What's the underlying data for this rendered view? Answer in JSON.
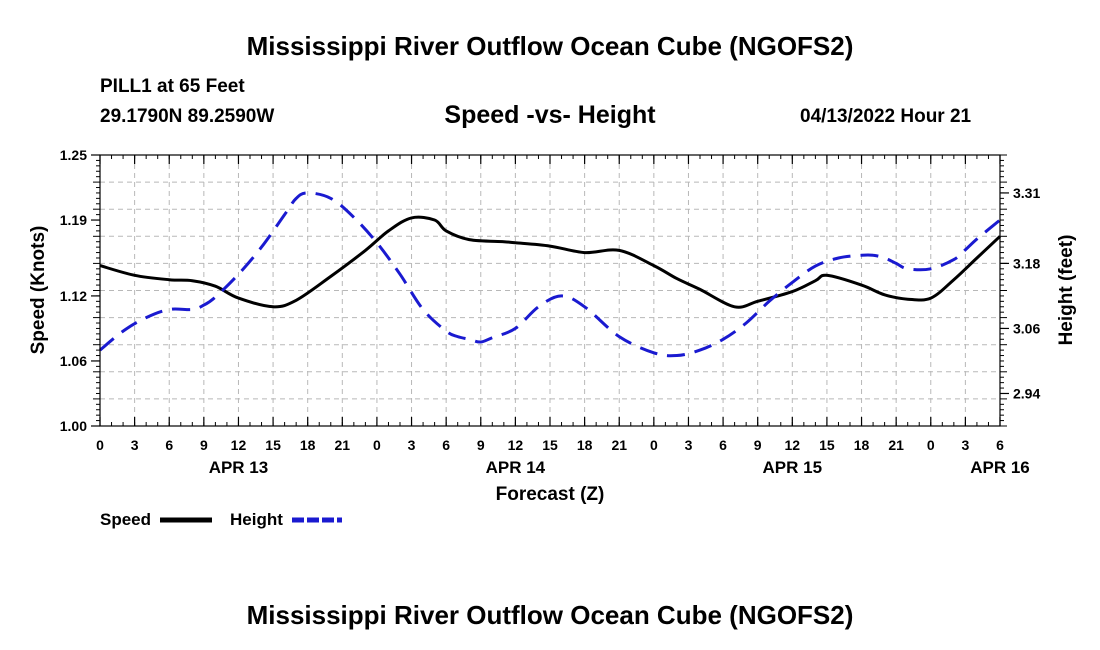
{
  "header": {
    "title": "Mississippi River Outflow Ocean Cube (NGOFS2)",
    "station": "PILL1 at 65 Feet",
    "coords": "29.1790N  89.2590W",
    "datetime": "04/13/2022 Hour 21",
    "bottom_title": "Mississippi River Outflow Ocean Cube (NGOFS2)"
  },
  "chart_data": {
    "type": "line",
    "title": "Speed -vs- Height",
    "xlabel": "Forecast (Z)",
    "ylabel": "Speed (Knots)",
    "y2label": "Height (feet)",
    "ylim": [
      1.0,
      1.25
    ],
    "y2lim": [
      2.88,
      3.38
    ],
    "yticks": [
      "1.00",
      "1.06",
      "1.12",
      "1.19",
      "1.25"
    ],
    "ytick_values": [
      1.0,
      1.06,
      1.12,
      1.19,
      1.25
    ],
    "y2ticks": [
      "2.94",
      "3.06",
      "3.18",
      "3.31"
    ],
    "y2tick_values": [
      2.94,
      3.06,
      3.18,
      3.31
    ],
    "xlim": [
      0,
      78
    ],
    "x_tick_labels": [
      "0",
      "3",
      "6",
      "9",
      "12",
      "15",
      "18",
      "21",
      "0",
      "3",
      "6",
      "9",
      "12",
      "15",
      "18",
      "21",
      "0",
      "3",
      "6",
      "9",
      "12",
      "15",
      "18",
      "21",
      "0",
      "3",
      "6"
    ],
    "date_labels": [
      {
        "hour": 12,
        "label": "APR 13"
      },
      {
        "hour": 36,
        "label": "APR 14"
      },
      {
        "hour": 60,
        "label": "APR 15"
      },
      {
        "hour": 78,
        "label": "APR 16"
      }
    ],
    "series": [
      {
        "name": "Speed",
        "axis": "left",
        "color": "#000000",
        "dash": "solid",
        "x": [
          0,
          3,
          6,
          8,
          10,
          12,
          15,
          17,
          20,
          23,
          25,
          27,
          29,
          30,
          32,
          35,
          36,
          39,
          42,
          45,
          48,
          50,
          52,
          55,
          57,
          60,
          62,
          63,
          66,
          68,
          70,
          72,
          74,
          76,
          78
        ],
        "values": [
          1.148,
          1.139,
          1.135,
          1.134,
          1.129,
          1.118,
          1.11,
          1.116,
          1.138,
          1.162,
          1.18,
          1.192,
          1.19,
          1.18,
          1.172,
          1.17,
          1.169,
          1.166,
          1.16,
          1.162,
          1.148,
          1.136,
          1.126,
          1.11,
          1.115,
          1.124,
          1.134,
          1.139,
          1.13,
          1.121,
          1.117,
          1.118,
          1.135,
          1.155,
          1.175
        ]
      },
      {
        "name": "Height",
        "axis": "right",
        "color": "#1a1ad0",
        "dash": "dashed",
        "x": [
          0,
          2,
          4,
          6,
          8,
          9,
          10,
          12,
          14,
          16,
          17,
          18,
          20,
          22,
          24,
          26,
          28,
          30,
          31,
          32,
          33,
          34,
          36,
          38,
          40,
          42,
          45,
          48,
          50,
          52,
          54,
          56,
          58,
          60,
          62,
          64,
          66,
          67,
          68,
          69,
          70,
          72,
          74,
          75,
          76,
          78
        ],
        "values": [
          3.02,
          3.055,
          3.08,
          3.095,
          3.095,
          3.103,
          3.118,
          3.16,
          3.21,
          3.27,
          3.3,
          3.31,
          3.3,
          3.265,
          3.218,
          3.16,
          3.095,
          3.055,
          3.045,
          3.04,
          3.035,
          3.043,
          3.06,
          3.1,
          3.12,
          3.1,
          3.045,
          3.015,
          3.01,
          3.02,
          3.04,
          3.07,
          3.11,
          3.145,
          3.175,
          3.19,
          3.195,
          3.195,
          3.19,
          3.18,
          3.17,
          3.17,
          3.187,
          3.205,
          3.225,
          3.26
        ]
      }
    ],
    "legend": [
      {
        "label": "Speed",
        "color": "#000000",
        "style": "solid"
      },
      {
        "label": "Height",
        "color": "#1a1ad0",
        "style": "dashed"
      }
    ],
    "legend_position": "bottom-left",
    "grid": true
  }
}
